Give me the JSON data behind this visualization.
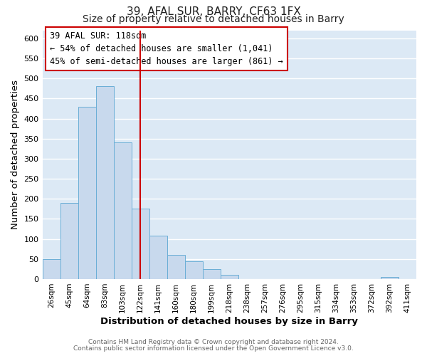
{
  "title1": "39, AFAL SUR, BARRY, CF63 1FX",
  "title2": "Size of property relative to detached houses in Barry",
  "xlabel": "Distribution of detached houses by size in Barry",
  "ylabel": "Number of detached properties",
  "bar_labels": [
    "26sqm",
    "45sqm",
    "64sqm",
    "83sqm",
    "103sqm",
    "122sqm",
    "141sqm",
    "160sqm",
    "180sqm",
    "199sqm",
    "218sqm",
    "238sqm",
    "257sqm",
    "276sqm",
    "295sqm",
    "315sqm",
    "334sqm",
    "353sqm",
    "372sqm",
    "392sqm",
    "411sqm"
  ],
  "bar_values": [
    50,
    190,
    430,
    480,
    340,
    175,
    108,
    60,
    44,
    25,
    10,
    0,
    0,
    0,
    0,
    0,
    0,
    0,
    0,
    5,
    0
  ],
  "bar_color": "#c8d9ed",
  "bar_edge_color": "#6aaed6",
  "vline_x": 5,
  "vline_color": "#cc0000",
  "ylim": [
    0,
    620
  ],
  "yticks": [
    0,
    50,
    100,
    150,
    200,
    250,
    300,
    350,
    400,
    450,
    500,
    550,
    600
  ],
  "annotation_title": "39 AFAL SUR: 118sqm",
  "annotation_line1": "← 54% of detached houses are smaller (1,041)",
  "annotation_line2": "45% of semi-detached houses are larger (861) →",
  "annotation_box_color": "#ffffff",
  "annotation_box_edge": "#cc0000",
  "footer1": "Contains HM Land Registry data © Crown copyright and database right 2024.",
  "footer2": "Contains public sector information licensed under the Open Government Licence v3.0.",
  "plot_bg_color": "#dce9f5",
  "fig_bg_color": "#ffffff",
  "grid_color": "#ffffff",
  "title_fontsize": 11,
  "subtitle_fontsize": 10,
  "axis_label_fontsize": 9.5
}
